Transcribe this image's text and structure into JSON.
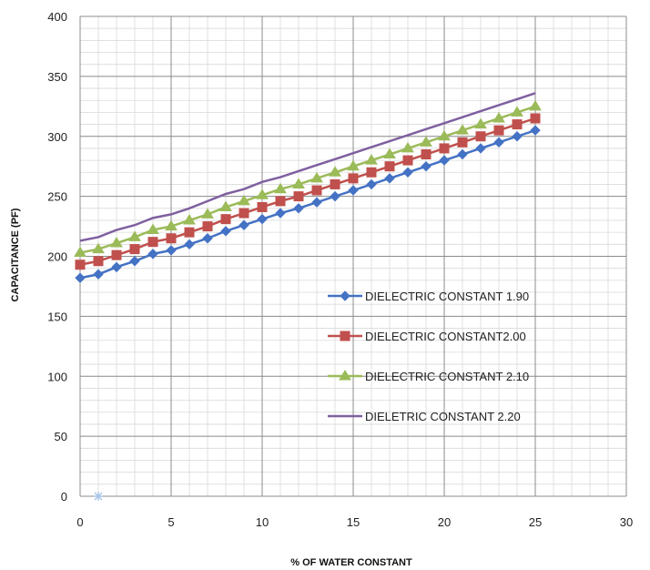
{
  "chart_data": {
    "type": "line",
    "title": "",
    "xlabel": "% OF WATER CONSTANT",
    "ylabel": "CAPACITANCE (PF)",
    "xlim": [
      0,
      30
    ],
    "ylim": [
      0,
      400
    ],
    "xticks": [
      0,
      5,
      10,
      15,
      20,
      25,
      30
    ],
    "yticks": [
      0,
      50,
      100,
      150,
      200,
      250,
      300,
      350,
      400
    ],
    "grid": true,
    "minor_grid": true,
    "legend_position": "center-right",
    "x": [
      0,
      1,
      2,
      3,
      4,
      5,
      6,
      7,
      8,
      9,
      10,
      11,
      12,
      13,
      14,
      15,
      16,
      17,
      18,
      19,
      20,
      21,
      22,
      23,
      24,
      25
    ],
    "series": [
      {
        "name": "DIELECTRIC CONSTANT 1.90",
        "color": "#4472C4",
        "marker": "diamond",
        "values": [
          182,
          185,
          191,
          196,
          202,
          205,
          210,
          215,
          221,
          226,
          231,
          236,
          240,
          245,
          250,
          255,
          260,
          265,
          270,
          275,
          280,
          285,
          290,
          295,
          300,
          305
        ]
      },
      {
        "name": "DIELECTRIC CONSTANT2.00",
        "color": "#C0504D",
        "marker": "square",
        "values": [
          193,
          196,
          201,
          206,
          212,
          215,
          220,
          225,
          231,
          236,
          241,
          246,
          250,
          255,
          260,
          265,
          270,
          275,
          280,
          285,
          290,
          295,
          300,
          305,
          310,
          315
        ]
      },
      {
        "name": "DIELECTRIC CONSTANT 2.10",
        "color": "#9BBB59",
        "marker": "triangle",
        "values": [
          203,
          206,
          211,
          216,
          222,
          225,
          230,
          235,
          241,
          246,
          251,
          256,
          260,
          265,
          270,
          275,
          280,
          285,
          290,
          295,
          300,
          305,
          310,
          315,
          320,
          325
        ]
      },
      {
        "name": "DIELETRIC CONSTANT 2.20",
        "color": "#7F60A0",
        "marker": "none",
        "values": [
          213,
          216,
          222,
          226,
          232,
          235,
          240,
          246,
          252,
          256,
          262,
          266,
          271,
          276,
          281,
          286,
          291,
          296,
          301,
          306,
          311,
          316,
          321,
          326,
          331,
          336
        ]
      }
    ],
    "extra_points": [
      {
        "x": 1,
        "y": 0,
        "color": "#A9C4E6",
        "marker": "star"
      }
    ]
  }
}
